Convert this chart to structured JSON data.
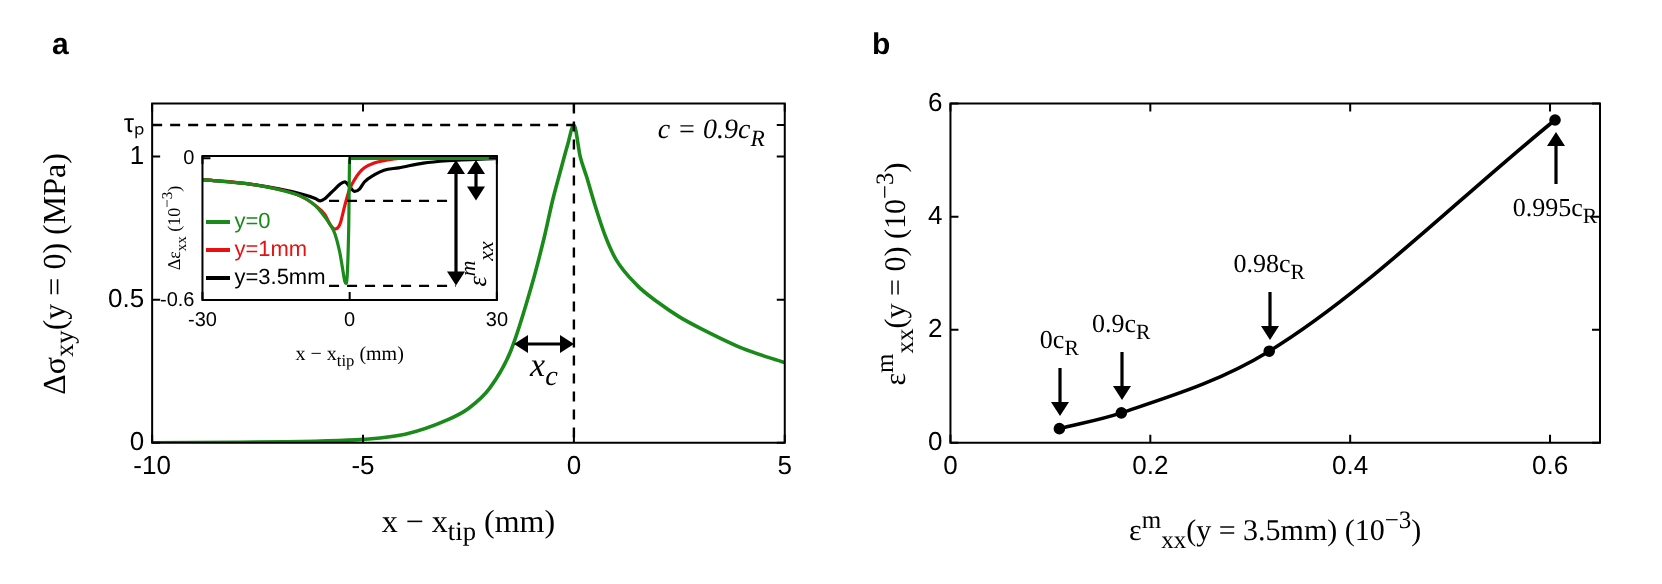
{
  "chart_data": [
    {
      "type": "line",
      "title": "a",
      "xlabel": "x − x$_{tip}$ (mm)",
      "ylabel": "Δσ$_{xy}$(y = 0) (MPa)",
      "color": "#1a8a1a",
      "x": [
        -10,
        -8,
        -6,
        -5,
        -4,
        -3,
        -2.5,
        -2,
        -1.5,
        -1,
        -0.7,
        -0.5,
        -0.3,
        -0.15,
        0,
        0.15,
        0.3,
        0.5,
        0.75,
        1,
        1.5,
        2,
        2.5,
        3,
        4,
        5
      ],
      "values": [
        0,
        0.002,
        0.006,
        0.012,
        0.03,
        0.08,
        0.12,
        0.19,
        0.32,
        0.55,
        0.72,
        0.85,
        0.96,
        1.04,
        1.11,
        1.0,
        0.93,
        0.83,
        0.72,
        0.64,
        0.55,
        0.49,
        0.44,
        0.4,
        0.33,
        0.28
      ],
      "xlim": [
        -10,
        5
      ],
      "ylim": [
        0,
        1.185
      ],
      "xticks": [
        -10,
        -5,
        0,
        5
      ],
      "yticks": [
        0,
        0.5,
        1,
        {
          "value": 1.11,
          "label": "τₚ"
        }
      ],
      "ref_lines": [
        {
          "axis": "x",
          "value": 0,
          "line_style": "dashed"
        },
        {
          "axis": "y",
          "value": 1.11,
          "line_style": "dashed"
        }
      ],
      "annotations": [
        "c = 0.9c$_{R}$",
        "x$_{c}$"
      ]
    },
    {
      "type": "line",
      "xlabel": "x − x$_{tip}$ (mm)",
      "ylabel": "Δε$_{xx}$ (10$^{−3}$)",
      "legend": "bottom left",
      "series": [
        {
          "name": "y=0",
          "color": "#1a8a1a",
          "x": [
            -30,
            -25,
            -20,
            -15,
            -10,
            -7,
            -5,
            -4,
            -3,
            -2,
            -1.5,
            -1,
            -0.7,
            -0.2,
            0,
            10,
            20,
            30
          ],
          "values": [
            -0.09,
            -0.1,
            -0.11,
            -0.13,
            -0.16,
            -0.2,
            -0.25,
            -0.28,
            -0.32,
            -0.4,
            -0.46,
            -0.52,
            -0.53,
            -0.3,
            0,
            0,
            0,
            0
          ]
        },
        {
          "name": "y=1mm",
          "color": "#e81010",
          "x": [
            -30,
            -20,
            -10,
            -7,
            -5,
            -4,
            -3,
            -2,
            -1,
            0,
            1,
            2,
            3,
            5,
            7,
            10,
            20,
            30
          ],
          "values": [
            -0.09,
            -0.11,
            -0.16,
            -0.2,
            -0.24,
            -0.28,
            -0.3,
            -0.28,
            -0.2,
            -0.13,
            -0.09,
            -0.06,
            -0.04,
            -0.02,
            -0.01,
            0,
            0,
            0
          ]
        },
        {
          "name": "y=3.5mm",
          "color": "#000000",
          "x": [
            -30,
            -20,
            -10,
            -7,
            -6,
            -5,
            -4,
            -3,
            -2,
            -1,
            0,
            1,
            2,
            3,
            5,
            7,
            10,
            15,
            20,
            30
          ],
          "values": [
            -0.09,
            -0.11,
            -0.15,
            -0.17,
            -0.18,
            -0.17,
            -0.15,
            -0.13,
            -0.11,
            -0.1,
            -0.12,
            -0.14,
            -0.13,
            -0.1,
            -0.07,
            -0.05,
            -0.04,
            -0.02,
            -0.01,
            0
          ]
        }
      ],
      "xlim": [
        -30,
        30
      ],
      "ylim": [
        -0.6,
        0.01
      ],
      "xticks": [
        -30,
        0,
        30
      ],
      "yticks": [
        -0.6,
        0
      ],
      "ref_lines": [
        {
          "axis": "y",
          "value": -0.18,
          "line_style": "dashed"
        },
        {
          "axis": "y",
          "value": -0.54,
          "line_style": "dashed"
        }
      ],
      "annotations": [
        "ε$^{m}$$_{xx}$"
      ]
    },
    {
      "type": "line",
      "title": "b",
      "xlabel": "ε$^{m}$$_{xx}$(y = 3.5mm) (10$^{−3}$)",
      "ylabel": "ε$^{m}$$_{xx}$(y = 0) (10$^{−3}$)",
      "color": "#000000",
      "marker": "circle",
      "x": [
        0.109,
        0.171,
        0.319,
        0.605
      ],
      "values": [
        0.25,
        0.53,
        1.62,
        5.71
      ],
      "xlim": [
        0,
        0.65
      ],
      "ylim": [
        0,
        6
      ],
      "xticks": [
        0,
        0.2,
        0.4,
        0.6
      ],
      "yticks": [
        0,
        2,
        4,
        6
      ],
      "annotations": [
        {
          "text": "0c$_{R}$",
          "x": 0.109,
          "y": 0.25
        },
        {
          "text": "0.9c$_{R}$",
          "x": 0.171,
          "y": 0.53
        },
        {
          "text": "0.98c$_{R}$",
          "x": 0.319,
          "y": 1.62
        },
        {
          "text": "0.995c$_{R}$",
          "x": 0.605,
          "y": 5.71
        }
      ]
    }
  ]
}
